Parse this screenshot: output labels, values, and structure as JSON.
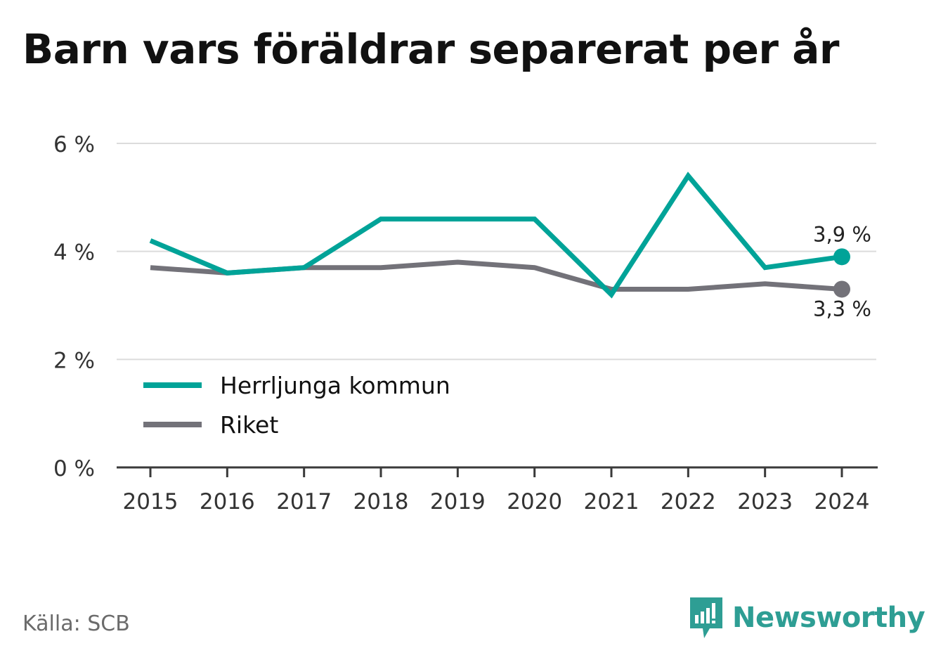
{
  "title": "Barn vars föräldrar separerat per år",
  "source": "Källa: SCB",
  "brand": "Newsworthy",
  "colors": {
    "herrljunga": "#00A398",
    "riket": "#737279",
    "grid": "#dcdcdc",
    "axis": "#3a3a3a"
  },
  "chart_data": {
    "type": "line",
    "title": "Barn vars föräldrar separerat per år",
    "x": [
      "2015",
      "2016",
      "2017",
      "2018",
      "2019",
      "2020",
      "2021",
      "2022",
      "2023",
      "2024"
    ],
    "ylim": [
      0,
      6
    ],
    "yticks": [
      0,
      2,
      4,
      6
    ],
    "ytick_labels": [
      "0 %",
      "2 %",
      "4 %",
      "6 %"
    ],
    "grid": true,
    "legend_position": "bottom-left",
    "series": [
      {
        "name": "Herrljunga kommun",
        "color": "#00A398",
        "values": [
          4.2,
          3.6,
          3.7,
          4.6,
          4.6,
          4.6,
          3.2,
          5.4,
          3.7,
          3.9
        ],
        "end_label": "3,9 %"
      },
      {
        "name": "Riket",
        "color": "#737279",
        "values": [
          3.7,
          3.6,
          3.7,
          3.7,
          3.8,
          3.7,
          3.3,
          3.3,
          3.4,
          3.3
        ],
        "end_label": "3,3 %"
      }
    ]
  }
}
